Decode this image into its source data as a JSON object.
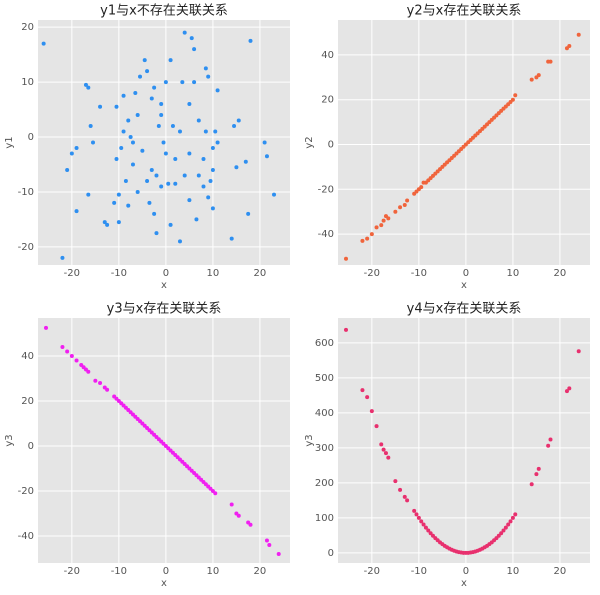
{
  "chart_data": [
    {
      "type": "scatter",
      "title": "y1与x不存在关联关系",
      "xlabel": "x",
      "ylabel": "y1",
      "color": "#2e8ff0",
      "grid": true,
      "xlim": [
        -27.2,
        26.4
      ],
      "ylim": [
        -23.3,
        21.3
      ],
      "xticks": [
        -20,
        -10,
        0,
        10,
        20
      ],
      "yticks": [
        -20,
        -10,
        0,
        10,
        20
      ],
      "x": [
        -26,
        -22,
        -21,
        -20,
        -19,
        -19,
        -17,
        -16.5,
        -16.5,
        -16,
        -15.5,
        -14,
        -13,
        -12.5,
        -11,
        -10.5,
        -10.5,
        -10,
        -10,
        -9.5,
        -9,
        -9,
        -8.5,
        -8,
        -8,
        -7.5,
        -7,
        -7,
        -6.5,
        -6,
        -6,
        -5.5,
        -5,
        -4.5,
        -4,
        -4,
        -3.5,
        -3,
        -3,
        -2.5,
        -2.5,
        -2,
        -2,
        -1.5,
        -1,
        -1,
        -1,
        -0.5,
        0,
        0,
        0.5,
        1,
        1,
        1.5,
        2,
        2,
        3,
        3,
        3.5,
        4,
        4,
        5,
        5,
        5,
        5.5,
        6,
        6,
        6.5,
        7,
        7,
        8,
        8,
        8.5,
        8.5,
        9,
        9,
        9.5,
        10,
        10,
        10,
        10.5,
        11,
        11,
        14,
        14.5,
        15,
        15.5,
        17,
        17.5,
        18,
        21,
        21.5,
        23
      ],
      "values": [
        17,
        -22,
        -6,
        -3,
        -2,
        -13.5,
        9.5,
        9,
        -10.5,
        2,
        -1,
        5.5,
        -15.5,
        -16,
        -12,
        -4,
        5.5,
        -10.5,
        -15.5,
        -2,
        1,
        7.5,
        -8,
        -12.5,
        3,
        0,
        -1,
        -5,
        8,
        -10,
        4,
        11,
        -2.5,
        14,
        -8,
        12,
        -12,
        -6,
        7,
        -14,
        9,
        -17.5,
        -7,
        2,
        4,
        6,
        -9,
        -1,
        -3,
        10,
        -8.5,
        -16,
        14,
        2,
        -4,
        -8.5,
        -19,
        1,
        10,
        19,
        -7,
        6,
        -3,
        -11.5,
        18,
        16,
        10,
        -15,
        -7,
        3,
        -4,
        -9,
        12.5,
        1,
        11,
        -11,
        -8,
        -2,
        -6,
        -13,
        1,
        -1,
        8.5,
        -18.5,
        2,
        -5.5,
        3,
        -4.5,
        -14,
        17.5,
        -1,
        -3.5,
        -10.5
      ]
    },
    {
      "type": "scatter",
      "title": "y2与x存在关联关系",
      "xlabel": "x",
      "ylabel": "y2",
      "color": "#f0643c",
      "grid": true,
      "xlim": [
        -27.2,
        26.4
      ],
      "ylim": [
        -53.8,
        55.6
      ],
      "xticks": [
        -20,
        -10,
        0,
        10,
        20
      ],
      "yticks": [
        -40,
        -20,
        0,
        20,
        40
      ],
      "x": [
        -25.5,
        -22,
        -21,
        -20,
        -19,
        -18,
        -17.5,
        -17,
        -16.5,
        -15,
        -14,
        -13,
        -12.5,
        -11,
        -10.5,
        -10,
        -9.5,
        -9,
        -8.5,
        -8,
        -7.5,
        -7,
        -6.5,
        -6,
        -5.5,
        -5,
        -4.5,
        -4,
        -3.5,
        -3,
        -2.5,
        -2,
        -1.5,
        -1,
        -0.5,
        0,
        0.5,
        1,
        1.5,
        2,
        2.5,
        3,
        3.5,
        4,
        4.5,
        5,
        5.5,
        6,
        6.5,
        7,
        7.5,
        8,
        8.5,
        9,
        9.5,
        10,
        10.5,
        14,
        15,
        15.5,
        17.5,
        18,
        21.5,
        22,
        24
      ],
      "values": [
        -51,
        -43,
        -42,
        -40,
        -37,
        -36,
        -34,
        -32,
        -33,
        -30,
        -28,
        -27,
        -25,
        -22,
        -21,
        -20,
        -19,
        -17,
        -17,
        -16,
        -15,
        -14,
        -13,
        -12,
        -11,
        -10,
        -9,
        -8,
        -7,
        -6,
        -5,
        -4,
        -3,
        -2,
        -1,
        0,
        1,
        2,
        3,
        4,
        5,
        6,
        7,
        8,
        9,
        10,
        11,
        12,
        13,
        14,
        15,
        16,
        17,
        18,
        19,
        20,
        22,
        29,
        30,
        31,
        37,
        37,
        43,
        44,
        49
      ]
    },
    {
      "type": "scatter",
      "title": "y3与x存在关联关系",
      "xlabel": "x",
      "ylabel": "y3",
      "color": "#f020f0",
      "grid": true,
      "xlim": [
        -27.2,
        26.4
      ],
      "ylim": [
        -52,
        56.9
      ],
      "xticks": [
        -20,
        -10,
        0,
        10,
        20
      ],
      "yticks": [
        -40,
        -20,
        0,
        20,
        40
      ],
      "x": [
        -25.5,
        -22,
        -21,
        -20,
        -19,
        -18,
        -17.5,
        -17,
        -16.5,
        -15,
        -14,
        -13,
        -12.5,
        -11,
        -10.5,
        -10,
        -9.5,
        -9,
        -8.5,
        -8,
        -7.5,
        -7,
        -6.5,
        -6,
        -5.5,
        -5,
        -4.5,
        -4,
        -3.5,
        -3,
        -2.5,
        -2,
        -1.5,
        -1,
        -0.5,
        0,
        0.5,
        1,
        1.5,
        2,
        2.5,
        3,
        3.5,
        4,
        4.5,
        5,
        5.5,
        6,
        6.5,
        7,
        7.5,
        8,
        8.5,
        9,
        9.5,
        10,
        10.5,
        14,
        15,
        15.5,
        17.5,
        18,
        21.5,
        22,
        24
      ],
      "values": [
        52.5,
        44,
        42,
        40,
        38,
        36,
        35,
        34,
        33,
        29,
        28,
        26,
        25,
        22,
        21,
        20,
        19,
        18,
        17,
        16,
        15,
        14,
        13,
        12,
        11,
        10,
        9,
        8,
        7,
        6,
        5,
        4,
        3,
        2,
        1,
        0,
        -1,
        -2,
        -3,
        -4,
        -5,
        -6,
        -7,
        -8,
        -9,
        -10,
        -11,
        -12,
        -13,
        -14,
        -15,
        -16,
        -17,
        -18,
        -19,
        -20,
        -21,
        -26,
        -30,
        -31,
        -34,
        -35,
        -42,
        -44,
        -48
      ]
    },
    {
      "type": "scatter",
      "title": "y4与x存在关联关系",
      "xlabel": "x",
      "ylabel": "y3",
      "color": "#e8306e",
      "grid": true,
      "xlim": [
        -27.2,
        26.4
      ],
      "ylim": [
        -29,
        671
      ],
      "xticks": [
        -20,
        -10,
        0,
        10,
        20
      ],
      "yticks": [
        0,
        100,
        200,
        300,
        400,
        500,
        600
      ],
      "x": [
        -25.5,
        -22,
        -21,
        -20,
        -19,
        -18,
        -17.5,
        -17,
        -16.5,
        -15,
        -14,
        -13,
        -12.5,
        -11,
        -10.5,
        -10,
        -9.5,
        -9,
        -8.5,
        -8,
        -7.5,
        -7,
        -6.5,
        -6,
        -5.5,
        -5,
        -4.5,
        -4,
        -3.5,
        -3,
        -2.5,
        -2,
        -1.5,
        -1,
        -0.5,
        0,
        0.5,
        1,
        1.5,
        2,
        2.5,
        3,
        3.5,
        4,
        4.5,
        5,
        5.5,
        6,
        6.5,
        7,
        7.5,
        8,
        8.5,
        9,
        9.5,
        10,
        10.5,
        14,
        15,
        15.5,
        17.5,
        18,
        21.5,
        22,
        24
      ],
      "values": [
        637,
        465,
        445,
        405,
        362,
        310,
        295,
        285,
        272,
        205,
        180,
        160,
        150,
        120,
        110,
        100,
        90,
        81,
        72,
        64,
        56,
        49,
        42,
        36,
        30,
        25,
        20,
        16,
        12,
        9,
        6,
        4,
        2,
        1,
        0,
        0,
        0,
        1,
        2,
        4,
        6,
        9,
        12,
        16,
        20,
        25,
        30,
        36,
        42,
        49,
        56,
        64,
        72,
        81,
        90,
        100,
        110,
        196,
        225,
        240,
        306,
        324,
        462,
        470,
        576
      ]
    }
  ]
}
